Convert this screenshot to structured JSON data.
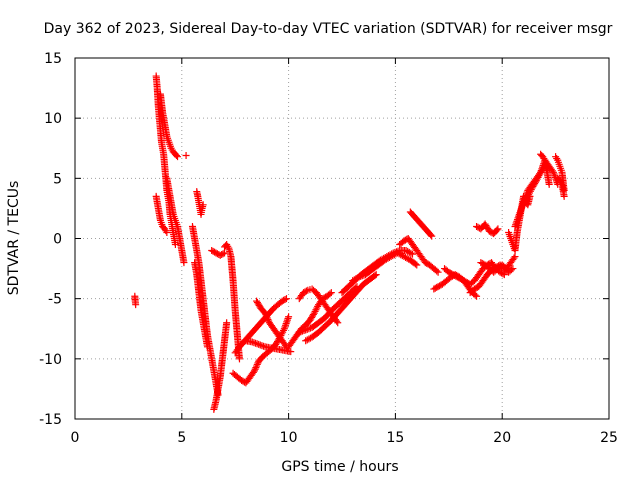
{
  "chart_data": {
    "type": "scatter",
    "title": "Day 362 of 2023, Sidereal Day-to-day VTEC variation (SDTVAR) for receiver msgr",
    "xlabel": "GPS time / hours",
    "ylabel": "SDTVAR / TECUs",
    "xlim": [
      0,
      25
    ],
    "ylim": [
      -15,
      15
    ],
    "x_ticks": [
      0,
      5,
      10,
      15,
      20,
      25
    ],
    "y_ticks": [
      -15,
      -10,
      -5,
      0,
      5,
      10,
      15
    ],
    "grid": true,
    "marker": "+",
    "color": "#ff0000",
    "segments": [
      {
        "x": [
          2.8,
          2.82,
          2.84
        ],
        "y": [
          -4.8,
          -5.2,
          -5.5
        ]
      },
      {
        "x": [
          3.8,
          3.85,
          3.9,
          3.95,
          4.0,
          4.05,
          4.1,
          4.15,
          4.2,
          4.25,
          4.3,
          4.35,
          4.4,
          4.45,
          4.5,
          4.55,
          4.6,
          4.65,
          4.7
        ],
        "y": [
          13.5,
          12.5,
          11.0,
          10.0,
          9.0,
          8.0,
          7.5,
          7.0,
          6.0,
          5.0,
          4.0,
          3.5,
          3.0,
          2.0,
          1.5,
          1.0,
          0.5,
          0.0,
          -0.5
        ]
      },
      {
        "x": [
          4.0,
          4.1,
          4.2,
          4.3,
          4.4,
          4.5,
          4.6,
          4.7,
          4.8
        ],
        "y": [
          12.0,
          10.5,
          9.5,
          8.5,
          8.0,
          7.5,
          7.2,
          7.0,
          6.8
        ]
      },
      {
        "x": [
          3.8,
          3.9,
          4.0,
          4.1,
          4.2,
          4.3
        ],
        "y": [
          3.5,
          2.5,
          1.5,
          1.0,
          0.8,
          0.5
        ]
      },
      {
        "x": [
          4.3,
          4.4,
          4.5,
          4.6,
          4.7,
          4.8,
          4.9,
          5.0,
          5.1
        ],
        "y": [
          5.0,
          4.0,
          3.0,
          2.0,
          1.5,
          1.0,
          0.0,
          -1.0,
          -2.0
        ]
      },
      {
        "x": [
          5.2
        ],
        "y": [
          6.9
        ]
      },
      {
        "x": [
          5.5,
          5.6,
          5.7,
          5.8,
          5.9,
          6.0,
          6.1,
          6.2,
          6.3,
          6.4,
          6.5,
          6.6,
          6.7
        ],
        "y": [
          1.0,
          0.0,
          -1.0,
          -2.0,
          -3.5,
          -5.0,
          -6.5,
          -8.0,
          -9.0,
          -10.0,
          -11.0,
          -12.0,
          -13.0
        ]
      },
      {
        "x": [
          5.7,
          5.75,
          5.8,
          5.85,
          5.9,
          5.95,
          6.0
        ],
        "y": [
          3.9,
          3.5,
          3.0,
          2.5,
          2.0,
          2.5,
          2.8
        ]
      },
      {
        "x": [
          5.6,
          5.7,
          5.8,
          5.9,
          6.0,
          6.1,
          6.2
        ],
        "y": [
          -2.0,
          -3.0,
          -4.5,
          -6.0,
          -7.0,
          -8.0,
          -9.0
        ]
      },
      {
        "x": [
          6.5,
          6.6,
          6.7,
          6.8,
          6.9,
          7.0,
          7.1
        ],
        "y": [
          -14.2,
          -13.5,
          -12.5,
          -11.5,
          -10.0,
          -8.5,
          -7.0
        ]
      },
      {
        "x": [
          6.4,
          6.6,
          6.8,
          7.0
        ],
        "y": [
          -1.0,
          -1.2,
          -1.4,
          -1.2
        ]
      },
      {
        "x": [
          7.0,
          7.1,
          7.2,
          7.3,
          7.4,
          7.5,
          7.6,
          7.7
        ],
        "y": [
          -0.7,
          -0.5,
          -0.8,
          -1.5,
          -3.5,
          -6.0,
          -8.0,
          -10.0
        ]
      },
      {
        "x": [
          7.4,
          7.6,
          7.8,
          8.0,
          8.2,
          8.4,
          8.6,
          8.8,
          9.0,
          9.2,
          9.4,
          9.6,
          9.8,
          10.0
        ],
        "y": [
          -11.2,
          -11.5,
          -11.8,
          -12.0,
          -11.5,
          -11.0,
          -10.2,
          -9.8,
          -9.5,
          -9.2,
          -8.8,
          -8.2,
          -7.5,
          -6.5
        ]
      },
      {
        "x": [
          7.5,
          7.7,
          7.9,
          8.1,
          8.3,
          8.5,
          8.7,
          8.9,
          9.1,
          9.3,
          9.5,
          9.7,
          9.9
        ],
        "y": [
          -9.5,
          -9.0,
          -8.6,
          -8.2,
          -7.8,
          -7.4,
          -7.0,
          -6.6,
          -6.2,
          -5.8,
          -5.5,
          -5.2,
          -5.0
        ]
      },
      {
        "x": [
          8.5,
          8.7,
          8.9,
          9.1,
          9.3,
          9.5,
          9.7,
          9.9
        ],
        "y": [
          -5.2,
          -5.8,
          -6.2,
          -7.0,
          -7.5,
          -8.0,
          -8.5,
          -9.0
        ]
      },
      {
        "x": [
          8.0,
          8.3,
          8.6,
          8.9,
          9.2,
          9.5,
          9.8,
          10.1
        ],
        "y": [
          -8.5,
          -8.6,
          -8.8,
          -9.0,
          -9.1,
          -9.2,
          -9.3,
          -9.4
        ]
      },
      {
        "x": [
          10.0,
          10.2,
          10.4,
          10.6,
          10.8,
          11.0,
          11.2,
          11.4,
          11.6,
          11.8,
          12.0
        ],
        "y": [
          -9.0,
          -8.5,
          -8.0,
          -7.5,
          -7.2,
          -6.8,
          -6.2,
          -5.5,
          -5.0,
          -4.8,
          -4.5
        ]
      },
      {
        "x": [
          10.5,
          10.7,
          10.9,
          11.1,
          11.3,
          11.5,
          11.7,
          11.9,
          12.1,
          12.3
        ],
        "y": [
          -5.0,
          -4.5,
          -4.3,
          -4.2,
          -4.5,
          -5.0,
          -5.5,
          -6.0,
          -6.5,
          -7.0
        ]
      },
      {
        "x": [
          10.5,
          10.8,
          11.1,
          11.4,
          11.7,
          12.0,
          12.3,
          12.6,
          12.9,
          13.2
        ],
        "y": [
          -7.8,
          -7.6,
          -7.4,
          -7.0,
          -6.6,
          -6.0,
          -5.5,
          -5.0,
          -4.5,
          -4.0
        ]
      },
      {
        "x": [
          10.8,
          11.1,
          11.4,
          11.7,
          12.0,
          12.3,
          12.6,
          12.9,
          13.2,
          13.5,
          13.8,
          14.1
        ],
        "y": [
          -8.5,
          -8.2,
          -7.8,
          -7.3,
          -6.8,
          -6.2,
          -5.6,
          -5.0,
          -4.4,
          -3.8,
          -3.4,
          -3.0
        ]
      },
      {
        "x": [
          12.5,
          12.8,
          13.1,
          13.4,
          13.7,
          14.0,
          14.3,
          14.6,
          14.9,
          15.2,
          15.5,
          15.8
        ],
        "y": [
          -4.5,
          -4.0,
          -3.5,
          -3.0,
          -2.6,
          -2.2,
          -1.8,
          -1.5,
          -1.2,
          -1.0,
          -1.0,
          -1.3
        ]
      },
      {
        "x": [
          13.0,
          13.3,
          13.6,
          13.9,
          14.2,
          14.5,
          14.8,
          15.1,
          15.4,
          15.7,
          16.0
        ],
        "y": [
          -3.5,
          -3.2,
          -3.0,
          -2.6,
          -2.2,
          -1.8,
          -1.5,
          -1.2,
          -1.5,
          -1.8,
          -2.2
        ]
      },
      {
        "x": [
          15.7,
          15.9,
          16.1,
          16.3,
          16.5,
          16.7
        ],
        "y": [
          2.2,
          1.8,
          1.4,
          1.0,
          0.6,
          0.2
        ]
      },
      {
        "x": [
          15.2,
          15.4,
          15.6,
          15.8,
          16.0,
          16.2,
          16.4,
          16.6,
          16.8,
          17.0
        ],
        "y": [
          -0.5,
          -0.2,
          0.0,
          -0.5,
          -1.0,
          -1.5,
          -2.0,
          -2.2,
          -2.5,
          -2.8
        ]
      },
      {
        "x": [
          16.8,
          17.0,
          17.2,
          17.4,
          17.6,
          17.8,
          18.0,
          18.2,
          18.4,
          18.6,
          18.8
        ],
        "y": [
          -4.2,
          -4.0,
          -3.8,
          -3.5,
          -3.2,
          -3.0,
          -3.2,
          -3.5,
          -4.0,
          -4.5,
          -4.8
        ]
      },
      {
        "x": [
          17.3,
          17.5,
          17.7,
          17.9,
          18.1,
          18.3,
          18.5,
          18.7,
          18.9,
          19.1,
          19.3,
          19.5,
          19.7,
          19.9,
          20.1
        ],
        "y": [
          -2.5,
          -2.8,
          -3.0,
          -3.2,
          -3.4,
          -3.6,
          -3.8,
          -3.5,
          -3.0,
          -2.5,
          -2.2,
          -2.0,
          -2.5,
          -2.8,
          -3.0
        ]
      },
      {
        "x": [
          18.5,
          18.7,
          18.9,
          19.1,
          19.3,
          19.5,
          19.7,
          19.9,
          20.1,
          20.3,
          20.5
        ],
        "y": [
          -4.5,
          -4.2,
          -4.0,
          -3.5,
          -3.0,
          -2.6,
          -2.4,
          -2.2,
          -2.5,
          -2.8,
          -2.5
        ]
      },
      {
        "x": [
          18.8,
          19.0,
          19.2,
          19.4,
          19.6,
          19.8
        ],
        "y": [
          1.0,
          0.8,
          1.2,
          0.6,
          0.4,
          0.8
        ]
      },
      {
        "x": [
          19.0,
          19.2,
          19.4,
          19.6,
          19.8,
          20.0,
          20.2,
          20.4,
          20.6
        ],
        "y": [
          -2.0,
          -2.2,
          -2.5,
          -2.8,
          -2.5,
          -2.2,
          -2.5,
          -2.0,
          -1.5
        ]
      },
      {
        "x": [
          20.3,
          20.4,
          20.5,
          20.6,
          20.7,
          20.8,
          20.9,
          21.0,
          21.1,
          21.2,
          21.3
        ],
        "y": [
          0.5,
          0.0,
          -0.5,
          -1.0,
          0.5,
          1.5,
          2.5,
          3.5,
          3.0,
          2.8,
          3.5
        ]
      },
      {
        "x": [
          20.6,
          20.8,
          21.0,
          21.2,
          21.4,
          21.6,
          21.8,
          22.0,
          22.2,
          22.4,
          22.6
        ],
        "y": [
          1.0,
          2.0,
          3.0,
          4.0,
          4.5,
          5.0,
          5.5,
          6.5,
          6.0,
          5.5,
          4.5
        ]
      },
      {
        "x": [
          21.0,
          21.2,
          21.4,
          21.6,
          21.8,
          22.0,
          22.2
        ],
        "y": [
          3.0,
          3.5,
          4.2,
          4.8,
          5.5,
          6.0,
          5.8
        ]
      },
      {
        "x": [
          21.8,
          21.9,
          22.0,
          22.1,
          22.2
        ],
        "y": [
          7.0,
          6.8,
          6.5,
          5.5,
          4.5
        ]
      },
      {
        "x": [
          22.5,
          22.6,
          22.7,
          22.8,
          22.9
        ],
        "y": [
          6.8,
          6.5,
          6.0,
          5.5,
          4.0
        ]
      },
      {
        "x": [
          22.6,
          22.7,
          22.8,
          22.9
        ],
        "y": [
          5.0,
          4.8,
          4.5,
          3.5
        ]
      }
    ]
  }
}
